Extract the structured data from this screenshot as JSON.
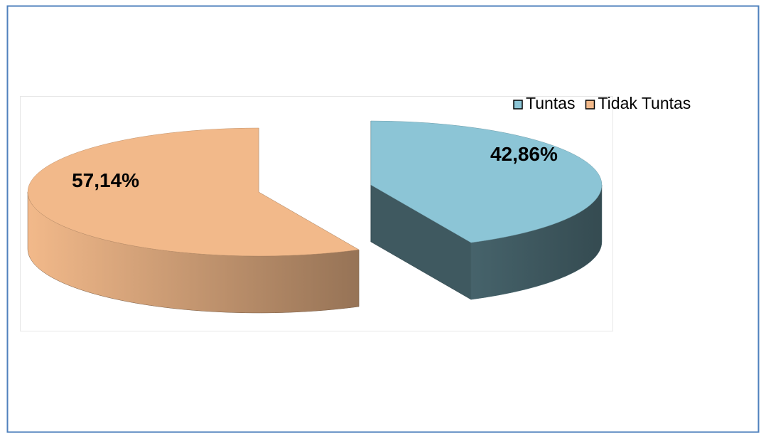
{
  "chart_data": {
    "type": "pie",
    "three_d": true,
    "exploded": true,
    "categories": [
      "Tuntas",
      "Tidak Tuntas"
    ],
    "values": [
      42.86,
      57.14
    ],
    "value_labels": [
      "42,86%",
      "57,14%"
    ],
    "colors": [
      "#8cc5d6",
      "#f2b98a"
    ],
    "legend": "top-right"
  }
}
